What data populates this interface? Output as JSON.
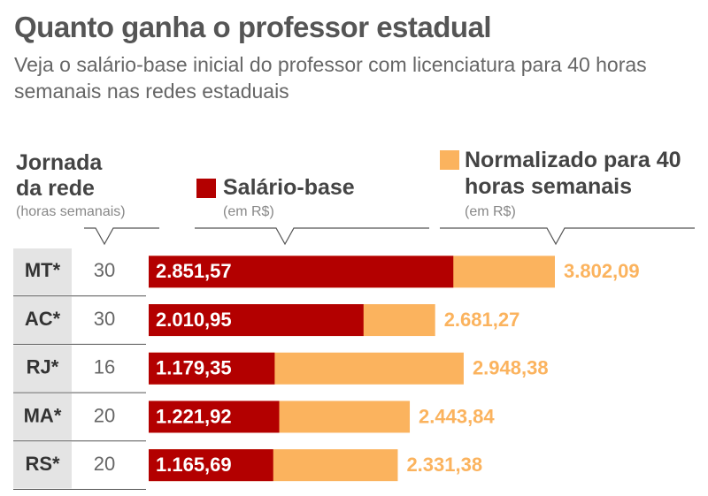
{
  "chart_data": {
    "type": "bar",
    "title": "Quanto ganha o professor estadual",
    "subtitle": "Veja o salário-base inicial do professor com licenciatura para 40 horas semanais nas redes estaduais",
    "hours_header": "Jornada da rede",
    "hours_unit": "(horas semanais)",
    "categories": [
      "MT*",
      "AC*",
      "RJ*",
      "MA*",
      "RS*"
    ],
    "hours": [
      30,
      30,
      16,
      20,
      20
    ],
    "series": [
      {
        "name": "Salário-base",
        "unit": "(em R$)",
        "color": "#b30000",
        "values": [
          2851.57,
          2010.95,
          1179.35,
          1221.92,
          1165.69
        ],
        "value_labels": [
          "2.851,57",
          "2.010,95",
          "1.179,35",
          "1.221,92",
          "1.165,69"
        ]
      },
      {
        "name": "Normalizado para 40 horas semanais",
        "unit": "(em R$)",
        "color": "#fbb35e",
        "values": [
          3802.09,
          2681.27,
          2948.38,
          2443.84,
          2331.38
        ],
        "value_labels": [
          "3.802,09",
          "2.681,27",
          "2.948,38",
          "2.443,84",
          "2.331,38"
        ]
      }
    ]
  }
}
